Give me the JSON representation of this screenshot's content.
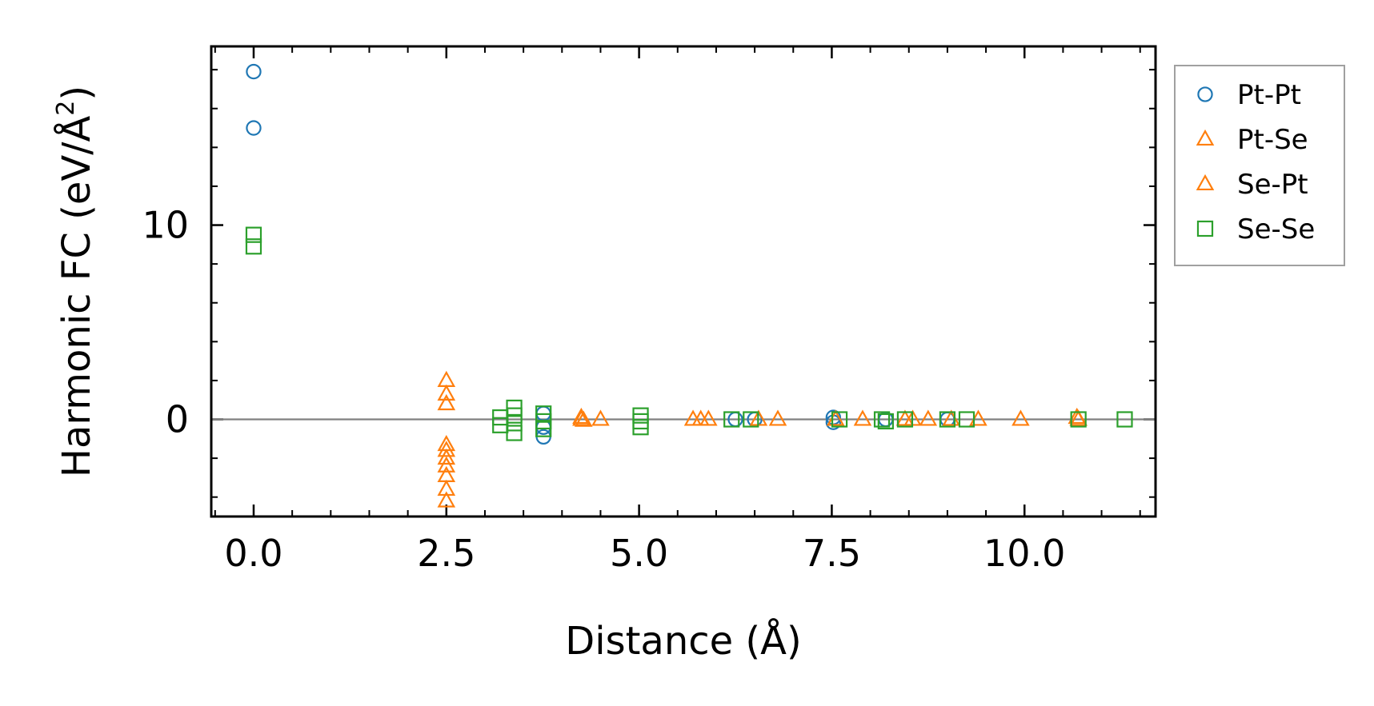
{
  "chart_data": {
    "type": "scatter",
    "xlabel": "Distance (Å)",
    "ylabel": "Harmonic FC (eV/Å",
    "ylabel_sup": "2",
    "ylabel_close": ")",
    "xlim": [
      -0.55,
      11.7
    ],
    "ylim": [
      -5.0,
      19.2
    ],
    "x_ticks": [
      0.0,
      2.5,
      5.0,
      7.5,
      10.0
    ],
    "x_tick_labels": [
      "0.0",
      "2.5",
      "5.0",
      "7.5",
      "10.0"
    ],
    "y_ticks": [
      0,
      10
    ],
    "y_tick_labels": [
      "0",
      "10"
    ],
    "grid": false,
    "zero_line": true,
    "legend_position": "outside-right-top",
    "series": [
      {
        "name": "Pt-Pt",
        "marker": "circle",
        "color": "#1f77b4",
        "points": [
          [
            0.0,
            17.9
          ],
          [
            0.0,
            15.0
          ],
          [
            3.76,
            -0.9
          ],
          [
            3.76,
            -0.4
          ],
          [
            3.76,
            0.3
          ],
          [
            6.25,
            0.0
          ],
          [
            6.5,
            0.0
          ],
          [
            7.52,
            -0.15
          ],
          [
            7.52,
            0.1
          ],
          [
            8.2,
            0.0
          ],
          [
            9.0,
            0.0
          ]
        ]
      },
      {
        "name": "Pt-Se",
        "marker": "triangle",
        "color": "#ff7f0e",
        "points": [
          [
            2.5,
            2.0
          ],
          [
            2.5,
            1.3
          ],
          [
            2.5,
            0.8
          ],
          [
            2.5,
            -1.3
          ],
          [
            2.5,
            -1.6
          ],
          [
            2.5,
            -2.0
          ],
          [
            2.5,
            -2.4
          ],
          [
            2.5,
            -2.9
          ],
          [
            2.5,
            -3.6
          ],
          [
            2.5,
            -4.2
          ],
          [
            4.25,
            0.0
          ],
          [
            4.25,
            0.1
          ],
          [
            4.5,
            0.0
          ],
          [
            5.7,
            0.0
          ],
          [
            5.9,
            0.0
          ],
          [
            6.55,
            0.0
          ],
          [
            6.8,
            0.0
          ],
          [
            7.9,
            0.0
          ],
          [
            8.55,
            0.0
          ],
          [
            8.75,
            0.0
          ],
          [
            9.4,
            0.0
          ],
          [
            9.95,
            0.0
          ],
          [
            10.7,
            0.0
          ]
        ]
      },
      {
        "name": "Se-Pt",
        "marker": "triangle",
        "color": "#ff7f0e",
        "points": [
          [
            4.28,
            -0.05
          ],
          [
            5.8,
            0.0
          ],
          [
            7.55,
            0.0
          ],
          [
            8.45,
            0.0
          ],
          [
            9.05,
            0.0
          ],
          [
            10.68,
            0.1
          ]
        ]
      },
      {
        "name": "Se-Se",
        "marker": "square",
        "color": "#2ca02c",
        "points": [
          [
            0.0,
            9.5
          ],
          [
            0.0,
            8.9
          ],
          [
            3.2,
            0.1
          ],
          [
            3.2,
            -0.3
          ],
          [
            3.38,
            0.6
          ],
          [
            3.38,
            0.2
          ],
          [
            3.38,
            -0.2
          ],
          [
            3.38,
            -0.7
          ],
          [
            3.76,
            0.3
          ],
          [
            3.76,
            -0.1
          ],
          [
            3.76,
            -0.5
          ],
          [
            5.02,
            0.2
          ],
          [
            5.02,
            -0.1
          ],
          [
            5.02,
            -0.4
          ],
          [
            6.2,
            0.0
          ],
          [
            6.45,
            0.0
          ],
          [
            7.6,
            0.0
          ],
          [
            8.15,
            0.0
          ],
          [
            8.2,
            -0.1
          ],
          [
            8.45,
            0.0
          ],
          [
            9.0,
            0.0
          ],
          [
            9.25,
            0.0
          ],
          [
            10.7,
            0.0
          ],
          [
            11.3,
            0.0
          ]
        ]
      }
    ]
  }
}
